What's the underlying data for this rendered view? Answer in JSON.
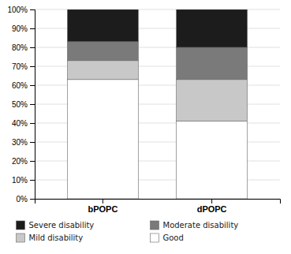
{
  "chart_data": {
    "type": "bar",
    "stacked": true,
    "categories": [
      "bPOPC",
      "dPOPC"
    ],
    "series": [
      {
        "name": "Good",
        "color": "#ffffff",
        "values": [
          63,
          41
        ]
      },
      {
        "name": "Mild disability",
        "color": "#c8c8c8",
        "values": [
          10,
          22
        ]
      },
      {
        "name": "Moderate disability",
        "color": "#7a7a7a",
        "values": [
          10,
          17
        ]
      },
      {
        "name": "Severe disability",
        "color": "#1c1c1c",
        "values": [
          17,
          20
        ]
      }
    ],
    "ylim": [
      0,
      100
    ],
    "yticks": [
      {
        "value": 0,
        "label": "0%"
      },
      {
        "value": 10,
        "label": "10%"
      },
      {
        "value": 20,
        "label": "20%"
      },
      {
        "value": 30,
        "label": "30%"
      },
      {
        "value": 40,
        "label": "40%"
      },
      {
        "value": 50,
        "label": "50%"
      },
      {
        "value": 60,
        "label": "60%"
      },
      {
        "value": 70,
        "label": "70%"
      },
      {
        "value": 80,
        "label": "80%"
      },
      {
        "value": 90,
        "label": "90%"
      },
      {
        "value": 100,
        "label": "100%"
      }
    ],
    "grid": true,
    "legend": "bottom"
  }
}
